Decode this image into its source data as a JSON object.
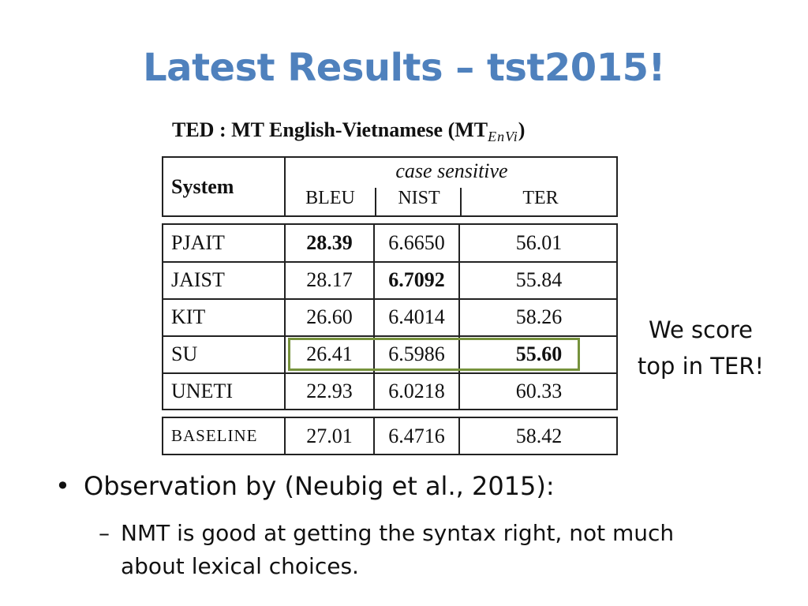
{
  "slide": {
    "title": "Latest Results – tst2015!"
  },
  "table": {
    "caption_prefix": "TED : MT English-Vietnamese (",
    "caption_mt": "MT",
    "caption_sub": "EnVi",
    "caption_suffix": ")",
    "header": {
      "system": "System",
      "group": "case sensitive",
      "cols": [
        "BLEU",
        "NIST",
        "TER"
      ]
    },
    "rows": [
      {
        "system": "PJAIT",
        "bleu": "28.39",
        "nist": "6.6650",
        "ter": "56.01"
      },
      {
        "system": "JAIST",
        "bleu": "28.17",
        "nist": "6.7092",
        "ter": "55.84"
      },
      {
        "system": "KIT",
        "bleu": "26.60",
        "nist": "6.4014",
        "ter": "58.26"
      },
      {
        "system": "SU",
        "bleu": "26.41",
        "nist": "6.5986",
        "ter": "55.60"
      },
      {
        "system": "UNETI",
        "bleu": "22.93",
        "nist": "6.0218",
        "ter": "60.33"
      }
    ],
    "baseline": {
      "system": "BASELINE",
      "bleu": "27.01",
      "nist": "6.4716",
      "ter": "58.42"
    },
    "highlight_color": "#76923c"
  },
  "side_note": {
    "line1": "We score",
    "line2": "top in TER!"
  },
  "bullets": {
    "main_marker": "•",
    "main": "Observation by (Neubig et al., 2015):",
    "sub_marker": "–",
    "sub_line1": "NMT is good at getting the syntax right, not much",
    "sub_line2": "about lexical choices."
  },
  "colors": {
    "title": "#4f81bd"
  }
}
